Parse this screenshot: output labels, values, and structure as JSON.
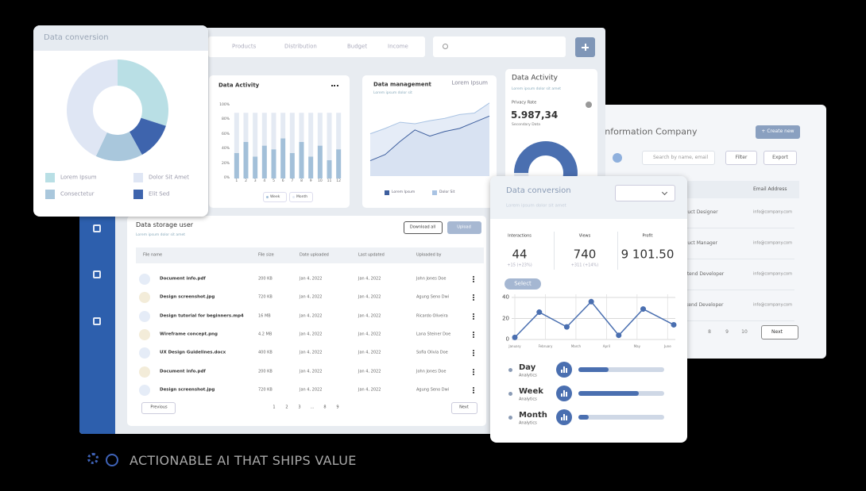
{
  "caption": "ACTIONABLE AI THAT SHIPS VALUE",
  "nav": [
    "Products",
    "Distribution",
    "Budget",
    "Income"
  ],
  "conversion_donut": {
    "title": "Data conversion",
    "type": "pie",
    "series": [
      {
        "name": "Lorem Ipsum",
        "color": "#b9dfe5",
        "value": 30
      },
      {
        "name": "Elit Sed",
        "color": "#3e64ad",
        "value": 12
      },
      {
        "name": "Consectetur",
        "color": "#a9c7dc",
        "value": 15
      },
      {
        "name": "Dolor Sit Amet",
        "color": "#dfe6f4",
        "value": 43
      }
    ]
  },
  "activity_bars": {
    "title": "Data Activity",
    "type": "bar",
    "categories": [
      "1",
      "2",
      "3",
      "4",
      "5",
      "6",
      "7",
      "8",
      "9",
      "10",
      "11",
      "12"
    ],
    "series": [
      {
        "name": "Week",
        "color": "#a3c0d9",
        "values": [
          35,
          50,
          30,
          45,
          40,
          55,
          35,
          50,
          30,
          45,
          25,
          40
        ]
      },
      {
        "name": "Month",
        "color": "#e4eaf3",
        "values": [
          55,
          40,
          60,
          45,
          50,
          35,
          55,
          40,
          60,
          45,
          65,
          50
        ]
      }
    ],
    "ylim": [
      0,
      100
    ],
    "yticks": [
      {
        "value": 0,
        "label": "0%"
      },
      {
        "value": 20,
        "label": "20%"
      },
      {
        "value": 40,
        "label": "40%"
      },
      {
        "value": 60,
        "label": "60%"
      },
      {
        "value": 80,
        "label": "80%"
      },
      {
        "value": 100,
        "label": "100%"
      }
    ]
  },
  "area_chart": {
    "title": "Data management",
    "subtitle": "Lorem ipsum dolor sit",
    "note": "Lorem Ipsum",
    "type": "area",
    "x": [
      0,
      1,
      2,
      3,
      4,
      5,
      6,
      7,
      8
    ],
    "xlim": [
      0,
      8
    ],
    "ylim": [
      0,
      100
    ],
    "series": [
      {
        "name": "Lorem Ipsum",
        "color": "#3e5f9e",
        "values": [
          20,
          28,
          45,
          60,
          52,
          58,
          62,
          70,
          78
        ]
      },
      {
        "name": "Dolor Sit",
        "color": "#a9c3e3",
        "values": [
          55,
          62,
          70,
          68,
          72,
          75,
          80,
          82,
          95
        ]
      }
    ]
  },
  "privacy_card": {
    "title": "Data Activity",
    "subtitle": "Lorem ipsum dolor sit amet",
    "label": "Privacy Rate",
    "value": "5.987,34",
    "note": "Secondary Data",
    "segments": [
      {
        "color": "#4a6fb0",
        "value": 60
      },
      {
        "color": "#a9c7e6",
        "value": 15
      },
      {
        "color": "#e3e9f2",
        "value": 25
      }
    ]
  },
  "storage": {
    "title": "Data storage user",
    "subtitle": "Lorem ipsum dolor sit amet",
    "download": "Download all",
    "upload": "Upload",
    "columns": [
      "File name",
      "File size",
      "Date uploaded",
      "Last updated",
      "Uploaded by"
    ],
    "rows": [
      [
        "Document info.pdf",
        "200 KB",
        "Jan 4, 2022",
        "Jan 4, 2022",
        "John Jones Doe"
      ],
      [
        "Design screenshot.jpg",
        "720 KB",
        "Jan 4, 2022",
        "Jan 4, 2022",
        "Agung Seno Dwi"
      ],
      [
        "Design tutorial for beginners.mp4",
        "16 MB",
        "Jan 4, 2022",
        "Jan 4, 2022",
        "Ricardo Oliveira"
      ],
      [
        "Wireframe concept.png",
        "4.2 MB",
        "Jan 4, 2022",
        "Jan 4, 2022",
        "Lana Steiner Doe"
      ],
      [
        "UX Design Guidelines.docx",
        "400 KB",
        "Jan 4, 2022",
        "Jan 4, 2022",
        "Sofia Olivia Doe"
      ],
      [
        "Document info.pdf",
        "200 KB",
        "Jan 4, 2022",
        "Jan 4, 2022",
        "John Jones Doe"
      ],
      [
        "Design screenshot.jpg",
        "720 KB",
        "Jan 4, 2022",
        "Jan 4, 2022",
        "Agung Seno Dwi"
      ]
    ],
    "previous": "Previous",
    "pages": [
      "1",
      "2",
      "3",
      "...",
      "8",
      "9"
    ],
    "next": "Next"
  },
  "company": {
    "title": "Information Company",
    "create": "+ Create new",
    "search": "Search by name, email",
    "filter": "Filter",
    "export": "Export",
    "column": "Email Address",
    "rows": [
      {
        "role": "Product Designer",
        "email": "info@company.com"
      },
      {
        "role": "Product Manager",
        "email": "info@company.com"
      },
      {
        "role": "Frontend Developer",
        "email": "info@company.com"
      },
      {
        "role": "Backend Developer",
        "email": "info@company.com"
      }
    ],
    "pages": [
      "8",
      "9",
      "10"
    ],
    "next": "Next"
  },
  "conversion_card": {
    "title": "Data conversion",
    "subtitle": "Lorem ipsum dolor sit amet",
    "stats": [
      {
        "label": "Interactions",
        "value": 44,
        "sub": "+15 (+23%)"
      },
      {
        "label": "Views",
        "value": 740,
        "sub": "+311 (+14%)"
      },
      {
        "label": "Profit",
        "value": 9101.5,
        "value_label": "9 101.50"
      }
    ],
    "button": "Select",
    "line": {
      "type": "line",
      "color": "#4a6fb0",
      "x": [
        1,
        1.8,
        2.7,
        3.5,
        4.4,
        5.2,
        6.2
      ],
      "values": [
        2,
        26,
        12,
        36,
        4,
        29,
        14
      ],
      "xlim": [
        1,
        6.2
      ],
      "xticks": [
        {
          "value": 1,
          "label": "January"
        },
        {
          "value": 2,
          "label": "February"
        },
        {
          "value": 3,
          "label": "March"
        },
        {
          "value": 4,
          "label": "April"
        },
        {
          "value": 5,
          "label": "May"
        },
        {
          "value": 6,
          "label": "June"
        }
      ],
      "ylim": [
        0,
        40
      ],
      "yticks": [
        0,
        20,
        40
      ],
      "grid": true
    },
    "progress": [
      {
        "label": "Day",
        "sub": "Analytics",
        "value": 35
      },
      {
        "label": "Week",
        "sub": "Analytics",
        "value": 70
      },
      {
        "label": "Month",
        "sub": "Analytics",
        "value": 12
      }
    ]
  }
}
